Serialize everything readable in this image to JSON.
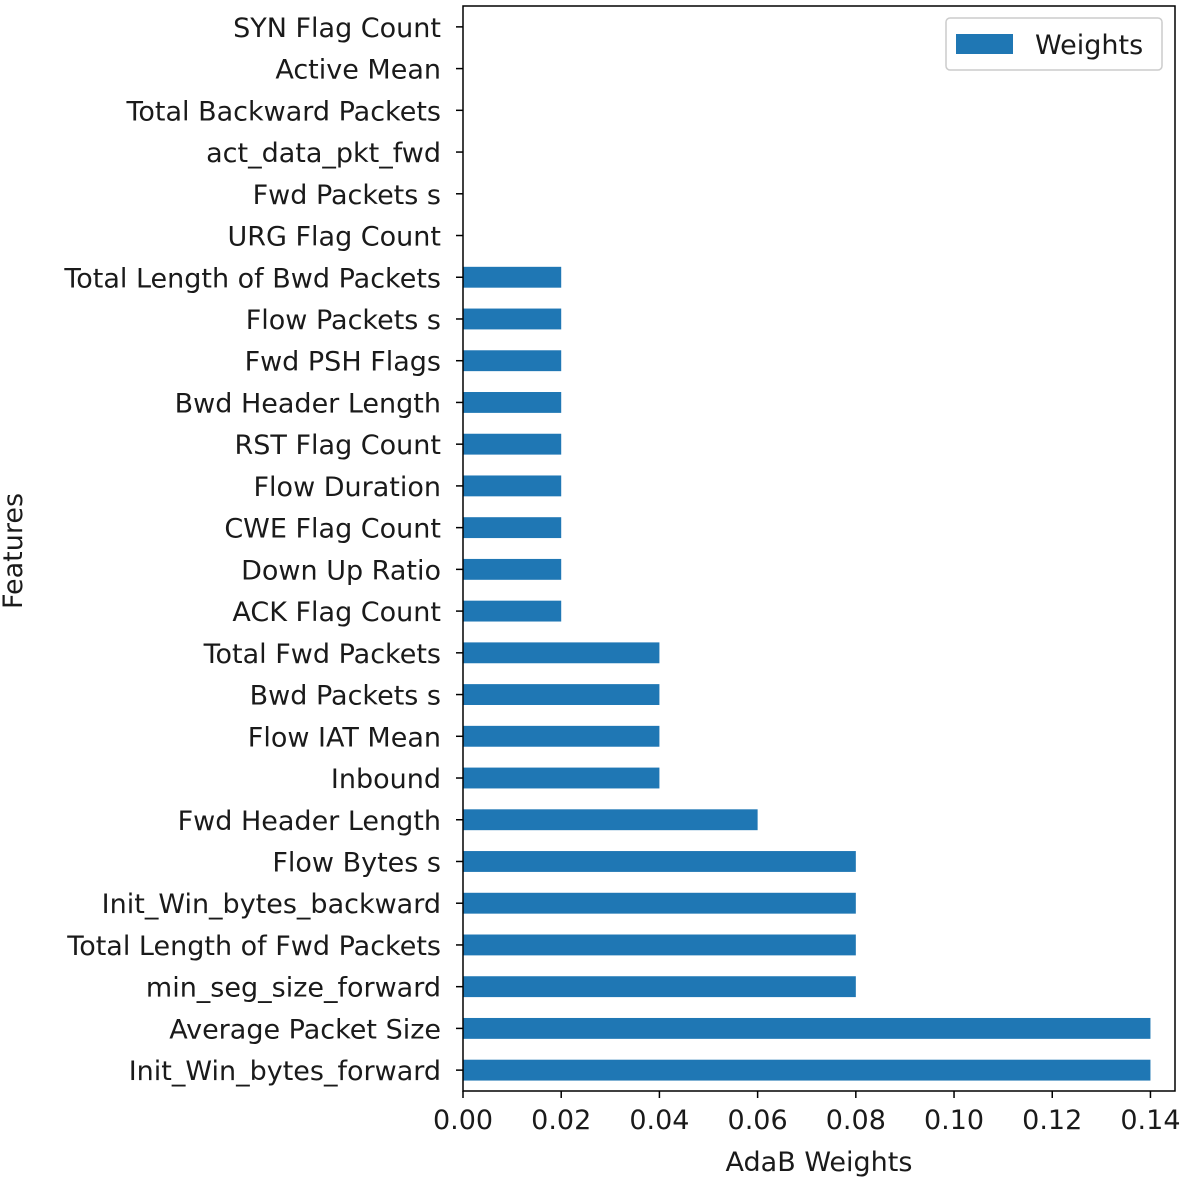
{
  "chart_data": {
    "type": "bar",
    "orientation": "horizontal",
    "title": "",
    "xlabel": "AdaB Weights",
    "ylabel": "Features",
    "xlim": [
      0.0,
      0.145
    ],
    "xticks": [
      "0.00",
      "0.02",
      "0.04",
      "0.06",
      "0.08",
      "0.10",
      "0.12",
      "0.14"
    ],
    "grid": false,
    "legend_position": "top-right",
    "categories": [
      "Init_Win_bytes_forward",
      "Average Packet Size",
      "min_seg_size_forward",
      "Total Length of Fwd Packets",
      "Init_Win_bytes_backward",
      "Flow Bytes s",
      "Fwd Header Length",
      "Inbound",
      "Flow IAT Mean",
      "Bwd Packets s",
      "Total Fwd Packets",
      "ACK Flag Count",
      "Down Up Ratio",
      "CWE Flag Count",
      "Flow Duration",
      "RST Flag Count",
      "Bwd Header Length",
      "Fwd PSH Flags",
      "Flow Packets s",
      "Total Length of Bwd Packets",
      "URG Flag Count",
      "Fwd Packets s",
      "act_data_pkt_fwd",
      "Total Backward Packets",
      "Active Mean",
      "SYN Flag Count"
    ],
    "series": [
      {
        "name": "Weights",
        "color": "#1f77b4",
        "values": [
          0.14,
          0.14,
          0.08,
          0.08,
          0.08,
          0.08,
          0.06,
          0.04,
          0.04,
          0.04,
          0.04,
          0.02,
          0.02,
          0.02,
          0.02,
          0.02,
          0.02,
          0.02,
          0.02,
          0.02,
          0.0,
          0.0,
          0.0,
          0.0,
          0.0,
          0.0
        ]
      }
    ]
  }
}
